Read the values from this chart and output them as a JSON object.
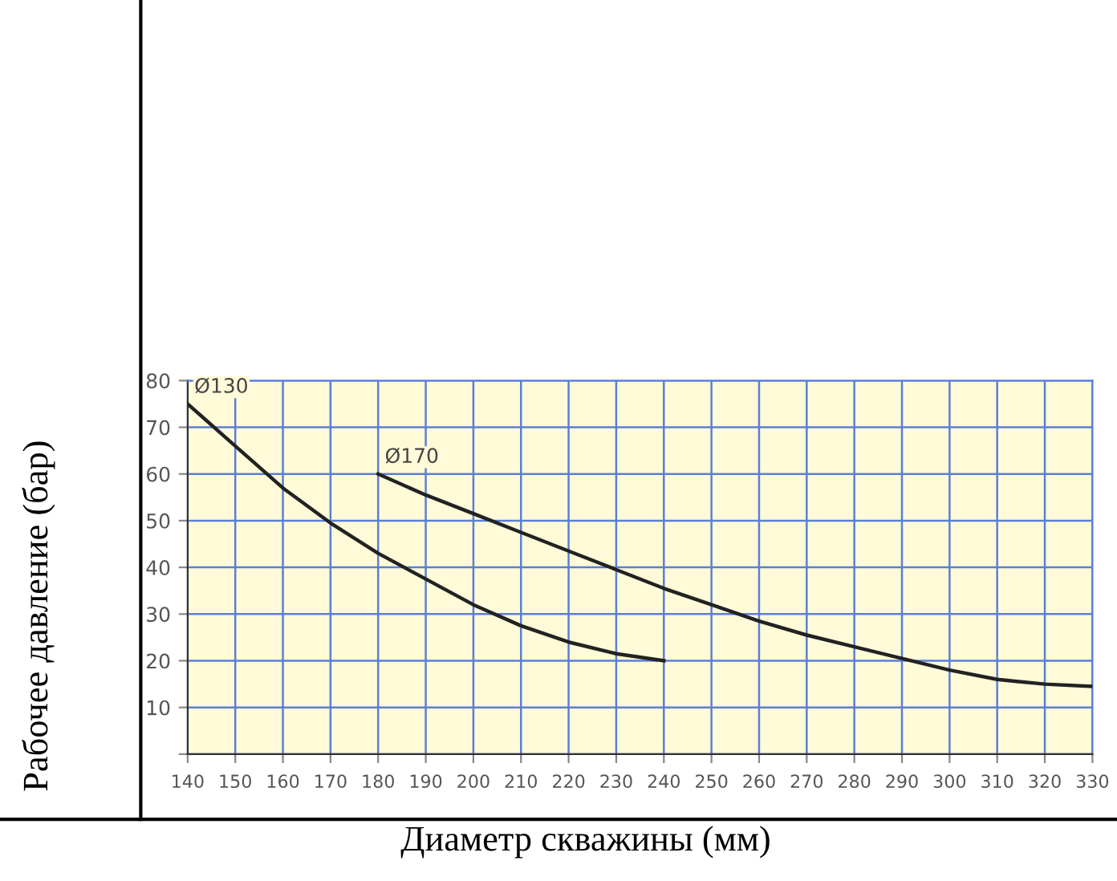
{
  "chart_data": {
    "type": "line",
    "xlabel": "Диаметр скважины (мм)",
    "ylabel": "Рабочее давление (бар)",
    "xlim": [
      140,
      330
    ],
    "ylim": [
      0,
      80
    ],
    "xticks": [
      140,
      150,
      160,
      170,
      180,
      190,
      200,
      210,
      220,
      230,
      240,
      250,
      260,
      270,
      280,
      290,
      300,
      310,
      320,
      330
    ],
    "yticks": [
      {
        "value": 0,
        "label": null
      },
      10,
      20,
      30,
      40,
      50,
      60,
      70,
      80
    ],
    "grid": true,
    "marker": "none",
    "line_style": "solid",
    "series": [
      {
        "name": "Ø130",
        "color": "#222222",
        "x": [
          140,
          150,
          160,
          170,
          180,
          190,
          200,
          210,
          220,
          230,
          240
        ],
        "values": [
          75,
          66,
          57,
          49.5,
          43,
          37.5,
          32,
          27.5,
          24,
          21.5,
          20
        ]
      },
      {
        "name": "Ø170",
        "color": "#222222",
        "x": [
          180,
          190,
          200,
          210,
          220,
          230,
          240,
          250,
          260,
          270,
          280,
          290,
          300,
          310,
          320,
          330
        ],
        "values": [
          60,
          55.5,
          51.5,
          47.5,
          43.5,
          39.5,
          35.5,
          32,
          28.5,
          25.5,
          23,
          20.5,
          18,
          16,
          15,
          14.5
        ]
      }
    ]
  }
}
